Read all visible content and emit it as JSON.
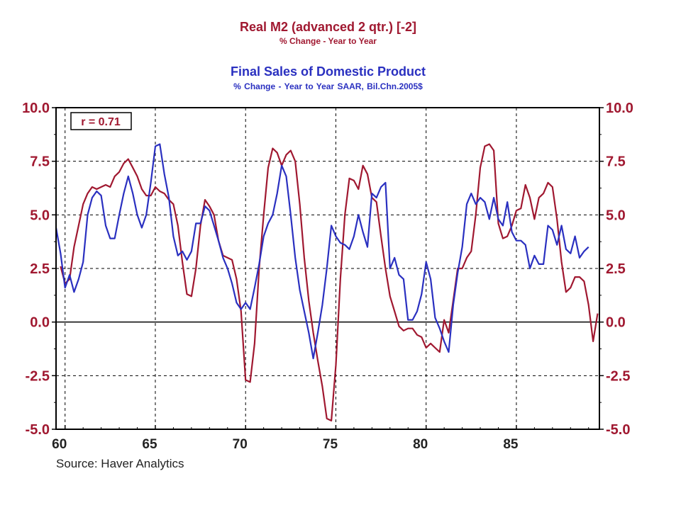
{
  "header": {
    "title1": "Real M2 (advanced 2 qtr.)  [-2]",
    "subtitle1": "% Change - Year to Year",
    "title2": "Final Sales of Domestic Product",
    "subtitle2": "% Change - Year to Year     SAAR, Bil.Chn.2005$"
  },
  "source": "Source: Haver Analytics",
  "chart_data": {
    "type": "line",
    "xlim": [
      1959.5,
      1989.6
    ],
    "ylim": [
      -5,
      10
    ],
    "x_ticks": [
      60,
      65,
      70,
      75,
      80,
      85
    ],
    "y_ticks": [
      "10.0",
      "7.5",
      "5.0",
      "2.5",
      "0.0",
      "-2.5",
      "-5.0"
    ],
    "y_tick_values": [
      10,
      7.5,
      5,
      2.5,
      0,
      -2.5,
      -5
    ],
    "grid": true,
    "annotation": "r = 0.71",
    "colors": {
      "m2": "#a01830",
      "sales": "#2a30c0"
    },
    "series": [
      {
        "key": "m2",
        "points": [
          [
            1959.75,
            2.6
          ],
          [
            1960.0,
            1.8
          ],
          [
            1960.25,
            2.0
          ],
          [
            1960.5,
            3.5
          ],
          [
            1960.75,
            4.5
          ],
          [
            1961.0,
            5.5
          ],
          [
            1961.25,
            6.0
          ],
          [
            1961.5,
            6.3
          ],
          [
            1961.75,
            6.2
          ],
          [
            1962.0,
            6.3
          ],
          [
            1962.25,
            6.4
          ],
          [
            1962.5,
            6.3
          ],
          [
            1962.75,
            6.8
          ],
          [
            1963.0,
            7.0
          ],
          [
            1963.25,
            7.4
          ],
          [
            1963.5,
            7.6
          ],
          [
            1963.75,
            7.2
          ],
          [
            1964.0,
            6.8
          ],
          [
            1964.25,
            6.2
          ],
          [
            1964.5,
            5.9
          ],
          [
            1964.75,
            5.9
          ],
          [
            1965.0,
            6.3
          ],
          [
            1965.25,
            6.1
          ],
          [
            1965.5,
            6.0
          ],
          [
            1965.75,
            5.7
          ],
          [
            1966.0,
            5.5
          ],
          [
            1966.25,
            4.5
          ],
          [
            1966.5,
            2.8
          ],
          [
            1966.75,
            1.3
          ],
          [
            1967.0,
            1.2
          ],
          [
            1967.25,
            2.5
          ],
          [
            1967.5,
            4.5
          ],
          [
            1967.75,
            5.7
          ],
          [
            1968.0,
            5.4
          ],
          [
            1968.25,
            5.0
          ],
          [
            1968.5,
            3.8
          ],
          [
            1968.75,
            3.1
          ],
          [
            1969.0,
            3.0
          ],
          [
            1969.25,
            2.9
          ],
          [
            1969.5,
            2.0
          ],
          [
            1969.75,
            0.5
          ],
          [
            1970.0,
            -2.7
          ],
          [
            1970.25,
            -2.8
          ],
          [
            1970.5,
            -1.0
          ],
          [
            1970.75,
            2.5
          ],
          [
            1971.0,
            5.0
          ],
          [
            1971.25,
            7.2
          ],
          [
            1971.5,
            8.1
          ],
          [
            1971.75,
            7.9
          ],
          [
            1972.0,
            7.3
          ],
          [
            1972.25,
            7.8
          ],
          [
            1972.5,
            8.0
          ],
          [
            1972.75,
            7.5
          ],
          [
            1973.0,
            5.5
          ],
          [
            1973.25,
            3.0
          ],
          [
            1973.5,
            1.0
          ],
          [
            1973.75,
            -0.5
          ],
          [
            1974.0,
            -1.8
          ],
          [
            1974.25,
            -3.0
          ],
          [
            1974.5,
            -4.5
          ],
          [
            1974.75,
            -4.6
          ],
          [
            1975.0,
            -2.0
          ],
          [
            1975.25,
            2.0
          ],
          [
            1975.5,
            5.0
          ],
          [
            1975.75,
            6.7
          ],
          [
            1976.0,
            6.6
          ],
          [
            1976.25,
            6.2
          ],
          [
            1976.5,
            7.3
          ],
          [
            1976.75,
            6.9
          ],
          [
            1977.0,
            5.8
          ],
          [
            1977.25,
            5.6
          ],
          [
            1977.5,
            4.0
          ],
          [
            1977.75,
            2.5
          ],
          [
            1978.0,
            1.2
          ],
          [
            1978.25,
            0.5
          ],
          [
            1978.5,
            -0.2
          ],
          [
            1978.75,
            -0.4
          ],
          [
            1979.0,
            -0.3
          ],
          [
            1979.25,
            -0.3
          ],
          [
            1979.5,
            -0.6
          ],
          [
            1979.75,
            -0.7
          ],
          [
            1980.0,
            -1.2
          ],
          [
            1980.25,
            -1.0
          ],
          [
            1980.5,
            -1.2
          ],
          [
            1980.75,
            -1.4
          ],
          [
            1981.0,
            0.1
          ],
          [
            1981.25,
            -0.5
          ],
          [
            1981.5,
            1.0
          ],
          [
            1981.75,
            2.5
          ],
          [
            1982.0,
            2.5
          ],
          [
            1982.25,
            3.0
          ],
          [
            1982.5,
            3.3
          ],
          [
            1982.75,
            5.0
          ],
          [
            1983.0,
            7.2
          ],
          [
            1983.25,
            8.2
          ],
          [
            1983.5,
            8.3
          ],
          [
            1983.75,
            8.0
          ],
          [
            1984.0,
            4.6
          ],
          [
            1984.25,
            3.9
          ],
          [
            1984.5,
            4.0
          ],
          [
            1984.75,
            4.5
          ],
          [
            1985.0,
            5.2
          ],
          [
            1985.25,
            5.3
          ],
          [
            1985.5,
            6.4
          ],
          [
            1985.75,
            5.8
          ],
          [
            1986.0,
            4.8
          ],
          [
            1986.25,
            5.8
          ],
          [
            1986.5,
            6.0
          ],
          [
            1986.75,
            6.5
          ],
          [
            1987.0,
            6.3
          ],
          [
            1987.25,
            4.8
          ],
          [
            1987.5,
            2.8
          ],
          [
            1987.75,
            1.4
          ],
          [
            1988.0,
            1.6
          ],
          [
            1988.25,
            2.1
          ],
          [
            1988.5,
            2.1
          ],
          [
            1988.75,
            1.9
          ],
          [
            1989.0,
            0.8
          ],
          [
            1989.25,
            -0.9
          ],
          [
            1989.5,
            0.4
          ]
        ]
      },
      {
        "key": "sales",
        "points": [
          [
            1959.5,
            4.4
          ],
          [
            1959.75,
            3.2
          ],
          [
            1960.0,
            1.6
          ],
          [
            1960.25,
            2.2
          ],
          [
            1960.5,
            1.4
          ],
          [
            1960.75,
            2.0
          ],
          [
            1961.0,
            2.8
          ],
          [
            1961.25,
            5.0
          ],
          [
            1961.5,
            5.8
          ],
          [
            1961.75,
            6.1
          ],
          [
            1962.0,
            5.9
          ],
          [
            1962.25,
            4.5
          ],
          [
            1962.5,
            3.9
          ],
          [
            1962.75,
            3.9
          ],
          [
            1963.0,
            5.0
          ],
          [
            1963.25,
            6.0
          ],
          [
            1963.5,
            6.8
          ],
          [
            1963.75,
            6.0
          ],
          [
            1964.0,
            5.0
          ],
          [
            1964.25,
            4.4
          ],
          [
            1964.5,
            5.0
          ],
          [
            1964.75,
            6.5
          ],
          [
            1965.0,
            8.2
          ],
          [
            1965.25,
            8.3
          ],
          [
            1965.5,
            6.9
          ],
          [
            1965.75,
            5.8
          ],
          [
            1966.0,
            4.0
          ],
          [
            1966.25,
            3.1
          ],
          [
            1966.5,
            3.3
          ],
          [
            1966.75,
            2.9
          ],
          [
            1967.0,
            3.3
          ],
          [
            1967.25,
            4.6
          ],
          [
            1967.5,
            4.6
          ],
          [
            1967.75,
            5.4
          ],
          [
            1968.0,
            5.2
          ],
          [
            1968.25,
            4.5
          ],
          [
            1968.5,
            3.8
          ],
          [
            1968.75,
            3.0
          ],
          [
            1969.0,
            2.5
          ],
          [
            1969.25,
            1.8
          ],
          [
            1969.5,
            0.9
          ],
          [
            1969.75,
            0.6
          ],
          [
            1970.0,
            0.9
          ],
          [
            1970.25,
            0.6
          ],
          [
            1970.5,
            1.6
          ],
          [
            1970.75,
            2.7
          ],
          [
            1971.0,
            4.0
          ],
          [
            1971.25,
            4.6
          ],
          [
            1971.5,
            5.0
          ],
          [
            1971.75,
            6.0
          ],
          [
            1972.0,
            7.3
          ],
          [
            1972.25,
            6.8
          ],
          [
            1972.5,
            5.0
          ],
          [
            1972.75,
            3.0
          ],
          [
            1973.0,
            1.5
          ],
          [
            1973.25,
            0.5
          ],
          [
            1973.5,
            -0.5
          ],
          [
            1973.75,
            -1.7
          ],
          [
            1974.0,
            -0.5
          ],
          [
            1974.25,
            0.8
          ],
          [
            1974.5,
            2.5
          ],
          [
            1974.75,
            4.5
          ],
          [
            1975.0,
            4.0
          ],
          [
            1975.25,
            3.7
          ],
          [
            1975.5,
            3.6
          ],
          [
            1975.75,
            3.4
          ],
          [
            1976.0,
            4.0
          ],
          [
            1976.25,
            5.0
          ],
          [
            1976.5,
            4.2
          ],
          [
            1976.75,
            3.5
          ],
          [
            1977.0,
            6.0
          ],
          [
            1977.25,
            5.8
          ],
          [
            1977.5,
            6.3
          ],
          [
            1977.75,
            6.5
          ],
          [
            1978.0,
            2.5
          ],
          [
            1978.25,
            3.0
          ],
          [
            1978.5,
            2.2
          ],
          [
            1978.75,
            2.0
          ],
          [
            1979.0,
            0.1
          ],
          [
            1979.25,
            0.1
          ],
          [
            1979.5,
            0.5
          ],
          [
            1979.75,
            1.3
          ],
          [
            1980.0,
            2.8
          ],
          [
            1980.25,
            2.0
          ],
          [
            1980.5,
            0.2
          ],
          [
            1980.75,
            -0.3
          ],
          [
            1981.0,
            -0.9
          ],
          [
            1981.25,
            -1.4
          ],
          [
            1981.5,
            0.8
          ],
          [
            1981.75,
            2.3
          ],
          [
            1982.0,
            3.5
          ],
          [
            1982.25,
            5.5
          ],
          [
            1982.5,
            6.0
          ],
          [
            1982.75,
            5.5
          ],
          [
            1983.0,
            5.8
          ],
          [
            1983.25,
            5.6
          ],
          [
            1983.5,
            4.8
          ],
          [
            1983.75,
            5.8
          ],
          [
            1984.0,
            4.8
          ],
          [
            1984.25,
            4.5
          ],
          [
            1984.5,
            5.6
          ],
          [
            1984.75,
            4.2
          ],
          [
            1985.0,
            3.8
          ],
          [
            1985.25,
            3.8
          ],
          [
            1985.5,
            3.6
          ],
          [
            1985.75,
            2.5
          ],
          [
            1986.0,
            3.1
          ],
          [
            1986.25,
            2.7
          ],
          [
            1986.5,
            2.7
          ],
          [
            1986.75,
            4.5
          ],
          [
            1987.0,
            4.3
          ],
          [
            1987.25,
            3.6
          ],
          [
            1987.5,
            4.5
          ],
          [
            1987.75,
            3.4
          ],
          [
            1988.0,
            3.2
          ],
          [
            1988.25,
            4.0
          ],
          [
            1988.5,
            3.0
          ],
          [
            1988.75,
            3.3
          ],
          [
            1989.0,
            3.5
          ]
        ]
      }
    ]
  }
}
